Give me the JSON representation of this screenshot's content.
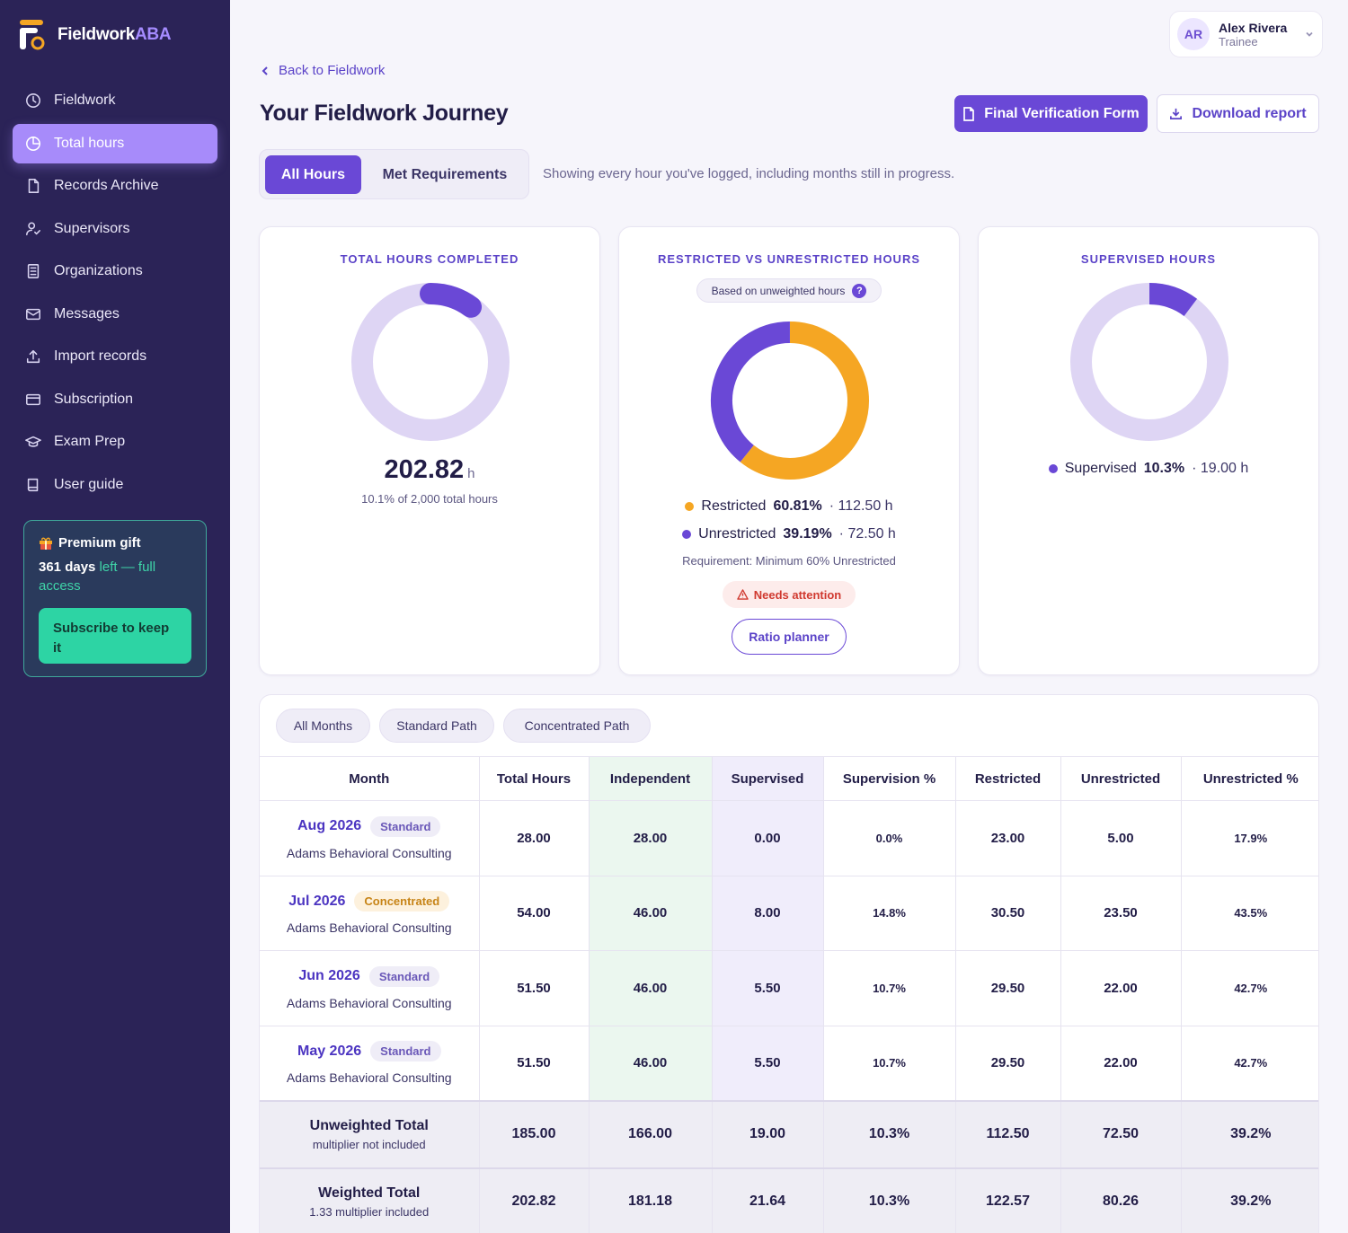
{
  "app": {
    "brand_main": "Fieldwork",
    "brand_accent": "ABA"
  },
  "sidebar": {
    "items": [
      {
        "label": "Fieldwork",
        "icon": "clock-icon"
      },
      {
        "label": "Total hours",
        "icon": "pie-icon",
        "active": true
      },
      {
        "label": "Records Archive",
        "icon": "file-icon"
      },
      {
        "label": "Supervisors",
        "icon": "user-check-icon"
      },
      {
        "label": "Organizations",
        "icon": "building-icon"
      },
      {
        "label": "Messages",
        "icon": "mail-icon"
      },
      {
        "label": "Import records",
        "icon": "upload-icon"
      },
      {
        "label": "Subscription",
        "icon": "card-icon"
      },
      {
        "label": "Exam Prep",
        "icon": "graduation-cap-icon"
      },
      {
        "label": "User guide",
        "icon": "book-icon"
      }
    ],
    "gift": {
      "title": "Premium gift",
      "days": "361 days",
      "rest": " left — full access",
      "button": "Subscribe to keep it"
    }
  },
  "user": {
    "initials": "AR",
    "name": "Alex Rivera",
    "role": "Trainee"
  },
  "header": {
    "back": "Back to Fieldwork",
    "title": "Your Fieldwork Journey",
    "primary_button": "Final Verification Form",
    "secondary_button": "Download report"
  },
  "segment": {
    "tabs": [
      "All Hours",
      "Met Requirements"
    ],
    "note": "Showing every hour you've logged, including months still in progress."
  },
  "cards": {
    "total": {
      "title": "TOTAL HOURS COMPLETED",
      "value": "202.82",
      "unit": "h",
      "note": "10.1% of 2,000 total hours",
      "progress": 0.101,
      "colors": {
        "track": "#ded5f4",
        "fill": "#6a48d6"
      }
    },
    "ratio": {
      "title": "RESTRICTED VS UNRESTRICTED HOURS",
      "pill": "Based on unweighted hours",
      "pill_icon": "?",
      "restricted": {
        "label": "Restricted",
        "pct": "60.81%",
        "hours": "· 112.50 h",
        "fraction": 0.6081,
        "color": "#f5a623"
      },
      "unrestricted": {
        "label": "Unrestricted",
        "pct": "39.19%",
        "hours": "· 72.50 h",
        "fraction": 0.3919,
        "color": "#6a48d6"
      },
      "requirement": "Requirement: Minimum 60% Unrestricted",
      "attention": "Needs attention",
      "button": "Ratio planner"
    },
    "supervised": {
      "title": "SUPERVISED HOURS",
      "label": "Supervised",
      "pct": "10.3%",
      "hours": "· 19.00 h",
      "fraction": 0.103,
      "colors": {
        "track": "#ded5f4",
        "fill": "#6a48d6"
      }
    }
  },
  "table": {
    "filters": [
      "All Months",
      "Standard Path",
      "Concentrated Path"
    ],
    "headers": [
      "Month",
      "Total Hours",
      "Independent",
      "Supervised",
      "Supervision %",
      "Restricted",
      "Unrestricted",
      "Unrestricted %"
    ],
    "rows": [
      {
        "month": "Aug 2026",
        "path": "Standard",
        "org": "Adams Behavioral Consulting",
        "total": "28.00",
        "independent": "28.00",
        "supervised": "0.00",
        "sup_pct": "0.0%",
        "restricted": "23.00",
        "unrestricted": "5.00",
        "unr_pct": "17.9%"
      },
      {
        "month": "Jul 2026",
        "path": "Concentrated",
        "org": "Adams Behavioral Consulting",
        "total": "54.00",
        "independent": "46.00",
        "supervised": "8.00",
        "sup_pct": "14.8%",
        "restricted": "30.50",
        "unrestricted": "23.50",
        "unr_pct": "43.5%"
      },
      {
        "month": "Jun 2026",
        "path": "Standard",
        "org": "Adams Behavioral Consulting",
        "total": "51.50",
        "independent": "46.00",
        "supervised": "5.50",
        "sup_pct": "10.7%",
        "restricted": "29.50",
        "unrestricted": "22.00",
        "unr_pct": "42.7%"
      },
      {
        "month": "May 2026",
        "path": "Standard",
        "org": "Adams Behavioral Consulting",
        "total": "51.50",
        "independent": "46.00",
        "supervised": "5.50",
        "sup_pct": "10.7%",
        "restricted": "29.50",
        "unrestricted": "22.00",
        "unr_pct": "42.7%"
      }
    ],
    "totals": [
      {
        "name": "Unweighted Total",
        "sub": "multiplier not included",
        "total": "185.00",
        "independent": "166.00",
        "supervised": "19.00",
        "sup_pct": "10.3%",
        "restricted": "112.50",
        "unrestricted": "72.50",
        "unr_pct": "39.2%"
      },
      {
        "name": "Weighted Total",
        "sub": "1.33 multiplier included",
        "total": "202.82",
        "independent": "181.18",
        "supervised": "21.64",
        "sup_pct": "10.3%",
        "restricted": "122.57",
        "unrestricted": "80.26",
        "unr_pct": "39.2%"
      }
    ]
  }
}
